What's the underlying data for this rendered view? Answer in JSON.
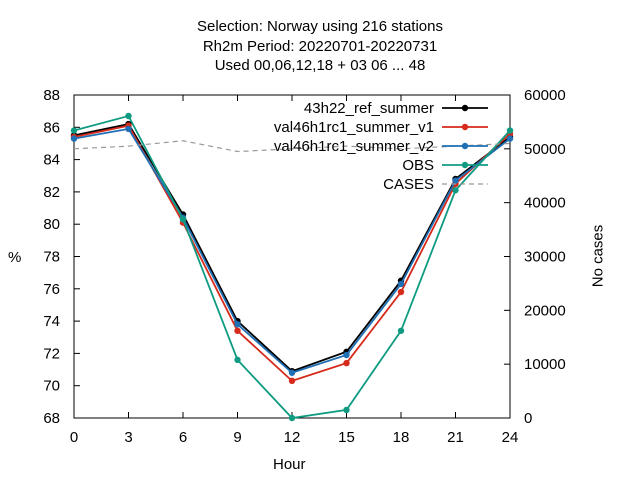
{
  "title_lines": [
    "Selection: Norway using   216 stations",
    "Rh2m   Period: 20220701-20220731",
    "Used  00,06,12,18  + 03 06 ... 48"
  ],
  "chart_data": {
    "type": "line",
    "xlabel": "Hour",
    "ylabel": "%",
    "y2label": "No cases",
    "x": [
      0,
      3,
      6,
      9,
      12,
      15,
      18,
      21,
      24
    ],
    "xticks": [
      "0",
      "3",
      "6",
      "9",
      "12",
      "15",
      "18",
      "21",
      "24"
    ],
    "xlim": [
      0,
      24
    ],
    "ylim": [
      68,
      88
    ],
    "yticks": [
      "68",
      "70",
      "72",
      "74",
      "76",
      "78",
      "80",
      "82",
      "84",
      "86",
      "88"
    ],
    "y2lim": [
      0,
      60000
    ],
    "y2ticks": [
      "0",
      "10000",
      "20000",
      "30000",
      "40000",
      "50000",
      "60000"
    ],
    "grid": false,
    "legend_position": "top-right",
    "series": [
      {
        "name": "43h22_ref_summer",
        "color": "#000000",
        "axis": "left",
        "style": "solid",
        "marker": "circle",
        "values": [
          85.5,
          86.2,
          80.6,
          74.0,
          70.9,
          72.1,
          76.5,
          82.8,
          85.4
        ]
      },
      {
        "name": "val46h1rc1_summer_v1",
        "color": "#d62a1a",
        "axis": "left",
        "style": "solid",
        "marker": "circle",
        "values": [
          85.4,
          86.1,
          80.1,
          73.4,
          70.3,
          71.4,
          75.8,
          82.5,
          85.6
        ]
      },
      {
        "name": "val46h1rc1_summer_v2",
        "color": "#1f6fb4",
        "axis": "left",
        "style": "solid",
        "marker": "circle",
        "values": [
          85.3,
          85.9,
          80.4,
          73.8,
          70.8,
          71.9,
          76.3,
          82.7,
          85.3
        ]
      },
      {
        "name": "OBS",
        "color": "#0f9b82",
        "axis": "left",
        "style": "solid",
        "marker": "circle",
        "values": [
          85.8,
          86.7,
          80.3,
          71.6,
          68.0,
          68.5,
          73.4,
          82.1,
          85.8
        ]
      },
      {
        "name": "CASES",
        "color": "#999999",
        "axis": "right",
        "style": "dashed",
        "marker": "none",
        "values": [
          50000,
          50500,
          51500,
          49500,
          50000,
          50500,
          50000,
          50500,
          51000
        ]
      }
    ]
  }
}
